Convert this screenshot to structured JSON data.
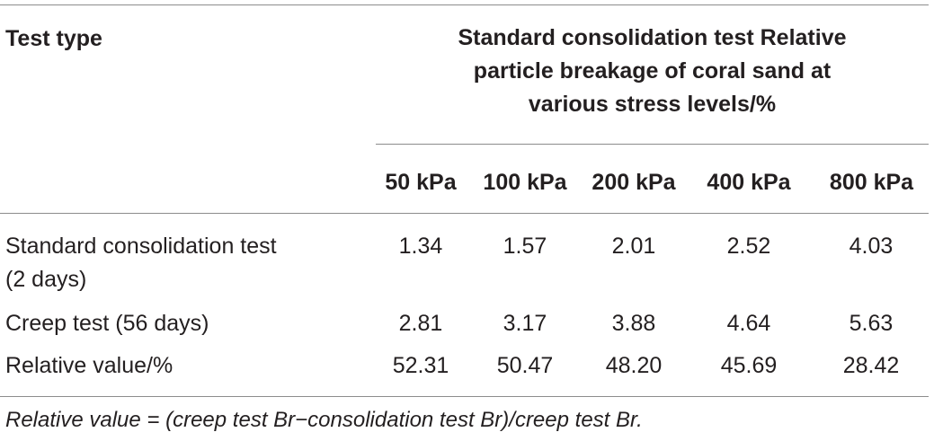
{
  "table": {
    "header": {
      "test_type": "Test type",
      "group_title_line1": "Standard consolidation test Relative",
      "group_title_line2": "particle breakage of coral sand at",
      "group_title_line3": "various stress levels/%",
      "columns": [
        "50 kPa",
        "100 kPa",
        "200 kPa",
        "400 kPa",
        "800 kPa"
      ]
    },
    "rows": [
      {
        "label_line1": "Standard consolidation test",
        "label_line2": "(2 days)",
        "values": [
          "1.34",
          "1.57",
          "2.01",
          "2.52",
          "4.03"
        ]
      },
      {
        "label_line1": "Creep test (56 days)",
        "values": [
          "2.81",
          "3.17",
          "3.88",
          "4.64",
          "5.63"
        ]
      },
      {
        "label_line1": "Relative value/%",
        "values": [
          "52.31",
          "50.47",
          "48.20",
          "45.69",
          "28.42"
        ]
      }
    ],
    "footnote": "Relative value = (creep test Br−consolidation test Br)/creep test Br."
  }
}
